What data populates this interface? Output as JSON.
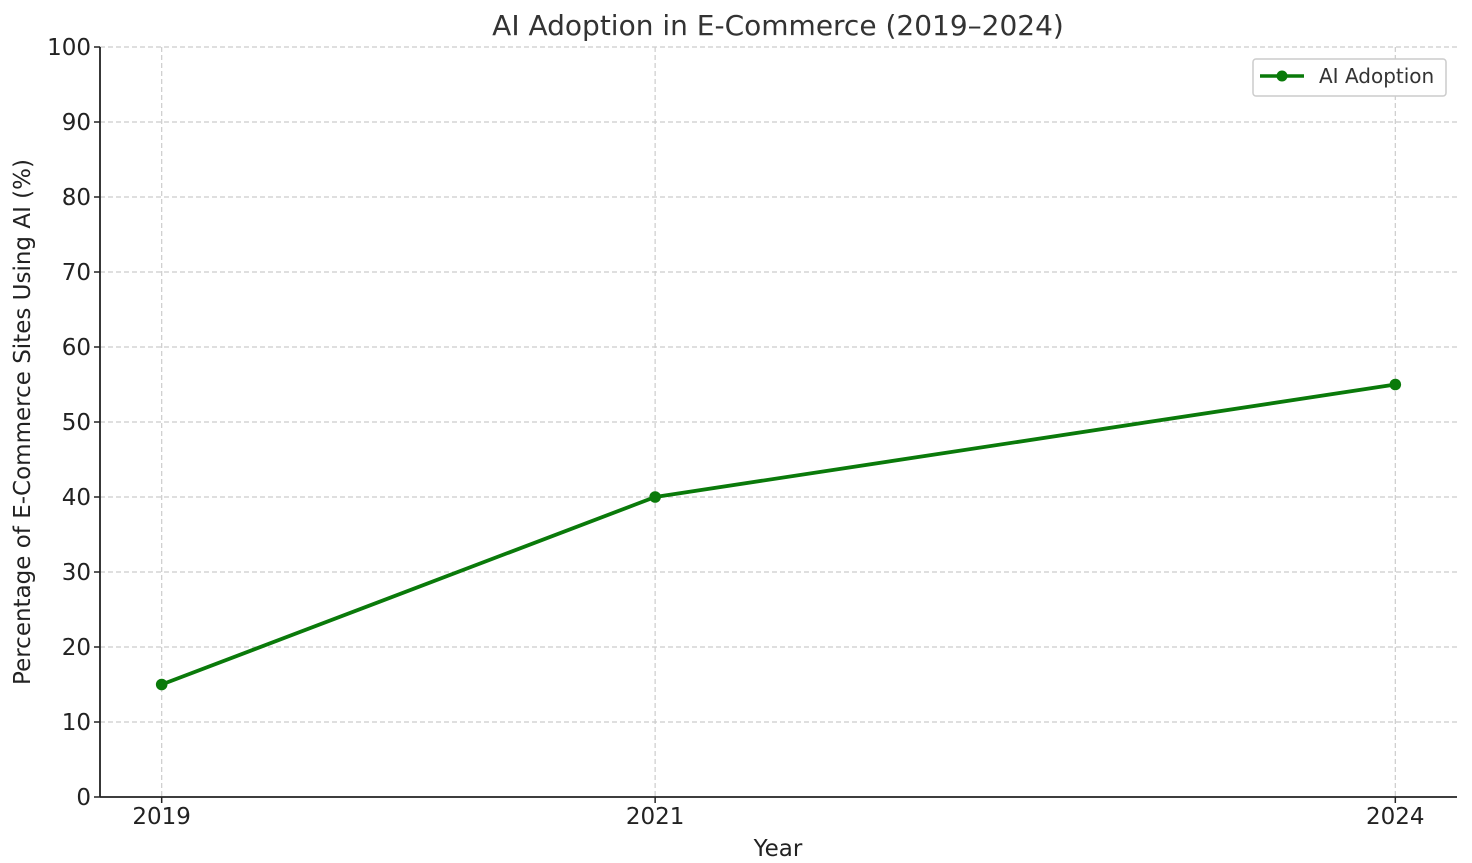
{
  "chart_data": {
    "type": "line",
    "title": "AI Adoption in E-Commerce (2019–2024)",
    "xlabel": "Year",
    "ylabel": "Percentage of E-Commerce Sites Using AI (%)",
    "x": [
      2019,
      2021,
      2024
    ],
    "x_tick_labels": [
      "2019",
      "2021",
      "2024"
    ],
    "xlim": [
      2018.75,
      2024.25
    ],
    "ylim": [
      0,
      100
    ],
    "y_ticks": [
      0,
      10,
      20,
      30,
      40,
      50,
      60,
      70,
      80,
      90,
      100
    ],
    "y_tick_labels": [
      "0",
      "10",
      "20",
      "30",
      "40",
      "50",
      "60",
      "70",
      "80",
      "90",
      "100"
    ],
    "grid": true,
    "legend_position": "top-right",
    "series": [
      {
        "name": "AI Adoption",
        "color": "#0a7a0a",
        "marker": "circle",
        "values": [
          15,
          40,
          55
        ]
      }
    ]
  }
}
